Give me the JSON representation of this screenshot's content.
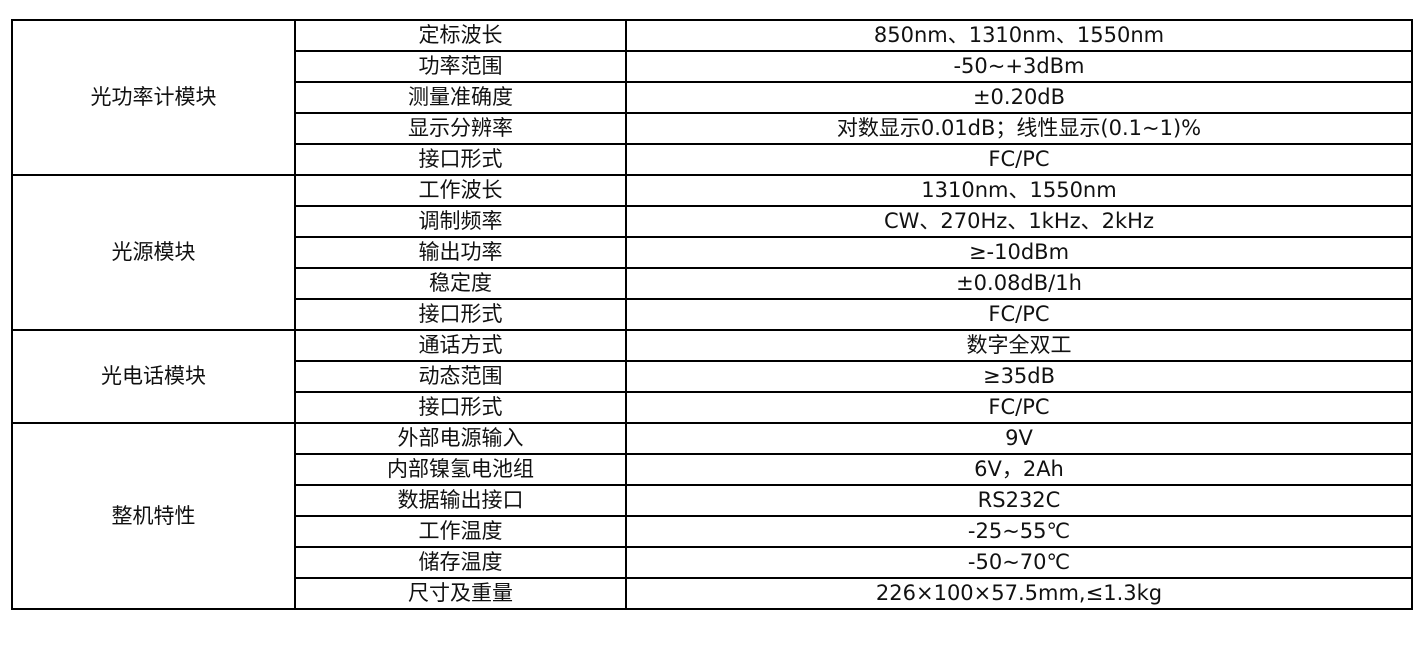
{
  "groups": [
    {
      "name": "光功率计模块",
      "rows": [
        {
          "param": "定标波长",
          "value": "850nm、1310nm、1550nm"
        },
        {
          "param": "功率范围",
          "value": "-50~+3dBm"
        },
        {
          "param": "测量准确度",
          "value": "±0.20dB"
        },
        {
          "param": "显示分辨率",
          "value": "对数显示0.01dB；线性显示(0.1~1)%"
        },
        {
          "param": "接口形式",
          "value": "FC/PC"
        }
      ]
    },
    {
      "name": "光源模块",
      "rows": [
        {
          "param": "工作波长",
          "value": "1310nm、1550nm"
        },
        {
          "param": "调制频率",
          "value": "CW、270Hz、1kHz、2kHz"
        },
        {
          "param": "输出功率",
          "value": "≥-10dBm"
        },
        {
          "param": "稳定度",
          "value": "±0.08dB/1h"
        },
        {
          "param": "接口形式",
          "value": "FC/PC"
        }
      ]
    },
    {
      "name": "光电话模块",
      "rows": [
        {
          "param": "通话方式",
          "value": "数字全双工"
        },
        {
          "param": "动态范围",
          "value": "≥35dB"
        },
        {
          "param": "接口形式",
          "value": "FC/PC"
        }
      ]
    },
    {
      "name": "整机特性",
      "rows": [
        {
          "param": "外部电源输入",
          "value": "9V"
        },
        {
          "param": "内部镍氢电池组",
          "value": "6V，2Ah"
        },
        {
          "param": "数据输出接口",
          "value": "RS232C"
        },
        {
          "param": "工作温度",
          "value": "-25~55℃"
        },
        {
          "param": "储存温度",
          "value": "-50~70℃"
        },
        {
          "param": "尺寸及重量",
          "value": "226×100×57.5mm,≤1.3kg"
        }
      ]
    }
  ]
}
